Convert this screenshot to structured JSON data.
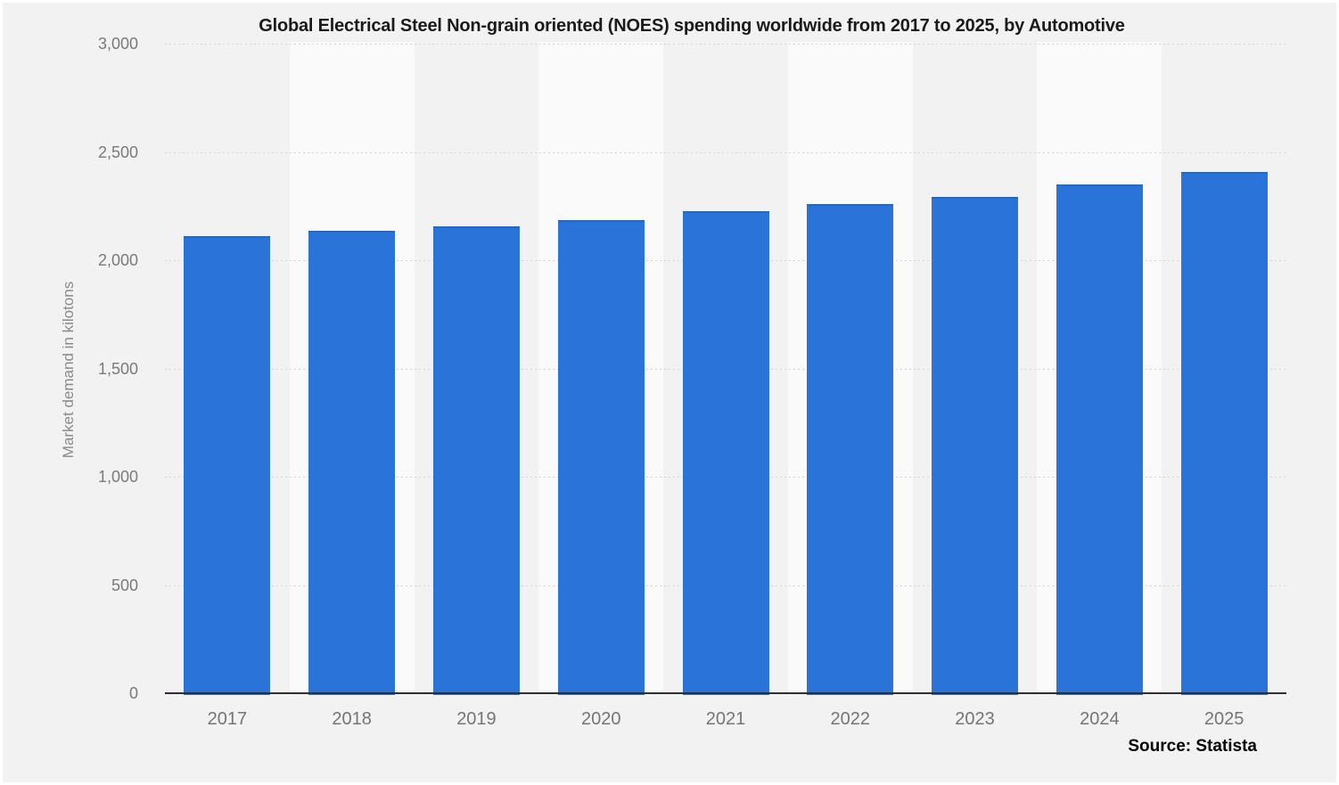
{
  "title": "Global Electrical Steel Non-grain oriented (NOES) spending worldwide from 2017 to 2025, by Automotive",
  "source": "Source: Statista",
  "colors": {
    "bar": "#2a73d9",
    "bar_top_edge": "#2b66bd",
    "background": "#f2f2f2",
    "plot_band_light": "#fafafa",
    "gridline": "#d4d4d4",
    "axis_line": "#2f2f2f",
    "tick_text": "#757575",
    "title_text": "#1a1a1a"
  },
  "chart_data": {
    "type": "bar",
    "title": "Global Electrical Steel Non-grain oriented (NOES) spending worldwide from 2017 to 2025, by Automotive",
    "categories": [
      "2017",
      "2018",
      "2019",
      "2020",
      "2021",
      "2022",
      "2023",
      "2024",
      "2025"
    ],
    "values": [
      2110,
      2135,
      2156,
      2187,
      2228,
      2260,
      2293,
      2351,
      2408
    ],
    "xlabel": "",
    "ylabel": "Market demand in kilotons",
    "ylim": [
      0,
      3000
    ],
    "yticks": [
      0,
      500,
      1000,
      1500,
      2000,
      2500,
      3000
    ],
    "ytick_labels": [
      "0",
      "500",
      "1,000",
      "1,500",
      "2,000",
      "2,500",
      "3,000"
    ],
    "grid": "horizontal-dashed",
    "legend": "none",
    "plot_bands": "alternating vertical bands behind every second category",
    "source": "Source: Statista"
  }
}
